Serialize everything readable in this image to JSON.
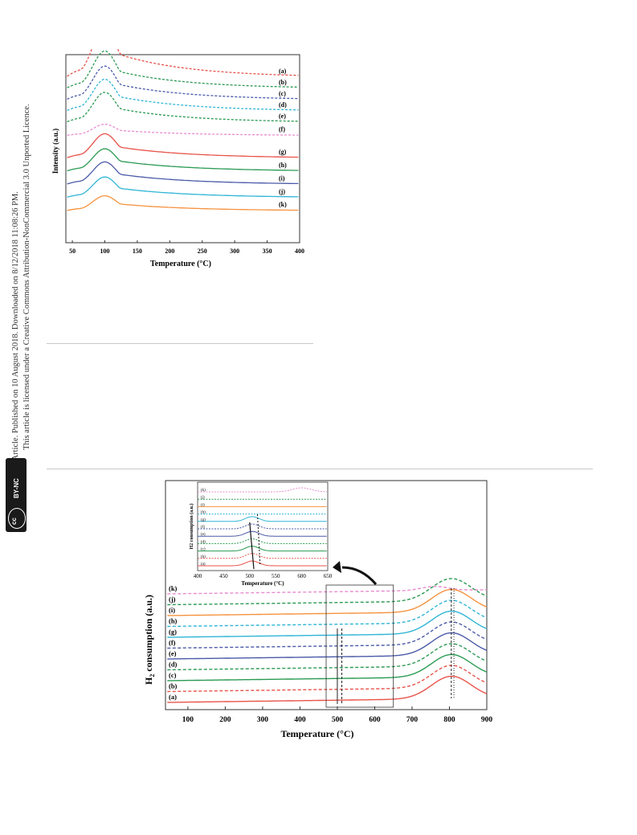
{
  "sidebar": {
    "line1": "Open Access Article. Published on 10 August 2018. Downloaded on 8/12/2018 11:08:26 PM.",
    "line2": "This article is licensed under a Creative Commons Attribution-NonCommercial 3.0 Unported Licence.",
    "badge_cc": "cc",
    "badge_by": "BY-NC"
  },
  "chart_data": [
    {
      "type": "line",
      "title": "",
      "xlabel": "Temperature (°C)",
      "ylabel": "Intensity (a.u.)",
      "xlim": [
        40,
        400
      ],
      "xticks": [
        50,
        100,
        150,
        200,
        250,
        300,
        350,
        400
      ],
      "peak_x": 100,
      "series": [
        {
          "name": "(a)",
          "style": "dashed",
          "color": "#e8534a",
          "baseline": 0.88,
          "peak": 0.27
        },
        {
          "name": "(b)",
          "style": "dashed",
          "color": "#2a9a52",
          "baseline": 0.82,
          "peak": 0.2
        },
        {
          "name": "(c)",
          "style": "dashed",
          "color": "#4a5aa8",
          "baseline": 0.76,
          "peak": 0.18
        },
        {
          "name": "(d)",
          "style": "dashed",
          "color": "#2fb5d6",
          "baseline": 0.7,
          "peak": 0.17
        },
        {
          "name": "(e)",
          "style": "dashed",
          "color": "#2a9a52",
          "baseline": 0.64,
          "peak": 0.16
        },
        {
          "name": "(f)",
          "style": "dashed",
          "color": "#e88ccf",
          "baseline": 0.57,
          "peak": 0.06
        },
        {
          "name": "(g)",
          "style": "solid",
          "color": "#e8534a",
          "baseline": 0.45,
          "peak": 0.13
        },
        {
          "name": "(h)",
          "style": "solid",
          "color": "#2a9a52",
          "baseline": 0.38,
          "peak": 0.12
        },
        {
          "name": "(i)",
          "style": "solid",
          "color": "#4a5aa8",
          "baseline": 0.31,
          "peak": 0.12
        },
        {
          "name": "(j)",
          "style": "solid",
          "color": "#2fb5d6",
          "baseline": 0.24,
          "peak": 0.11
        },
        {
          "name": "(k)",
          "style": "solid",
          "color": "#f5923e",
          "baseline": 0.17,
          "peak": 0.08
        }
      ]
    },
    {
      "type": "line",
      "title": "",
      "xlabel": "Temperature (°C)",
      "ylabel": "H2 consumption (a.u.)",
      "xlim": [
        40,
        900
      ],
      "xticks": [
        100,
        200,
        300,
        400,
        500,
        600,
        700,
        800,
        900
      ],
      "main_peak_x": 805,
      "series": [
        {
          "name": "(k)",
          "style": "dashed",
          "color": "#e88ccf",
          "shoulder_x": 760
        },
        {
          "name": "(j)",
          "style": "dashed",
          "color": "#2a9a52"
        },
        {
          "name": "(i)",
          "style": "solid",
          "color": "#f5923e"
        },
        {
          "name": "(h)",
          "style": "dashed",
          "color": "#2fb5d6"
        },
        {
          "name": "(g)",
          "style": "solid",
          "color": "#2fb5d6"
        },
        {
          "name": "(f)",
          "style": "dashed",
          "color": "#4a5aa8"
        },
        {
          "name": "(e)",
          "style": "solid",
          "color": "#4a5aa8"
        },
        {
          "name": "(d)",
          "style": "dashed",
          "color": "#2a9a52"
        },
        {
          "name": "(c)",
          "style": "solid",
          "color": "#2a9a52"
        },
        {
          "name": "(b)",
          "style": "dashed",
          "color": "#e8534a"
        },
        {
          "name": "(a)",
          "style": "solid",
          "color": "#e8534a"
        }
      ],
      "inset": {
        "xlabel": "Temperature (°C)",
        "ylabel": "H2 consumption (a.u.)",
        "xlim": [
          400,
          650
        ],
        "xticks": [
          400,
          450,
          500,
          550,
          600,
          650
        ],
        "zoom_range": [
          470,
          650
        ],
        "labels": [
          "(k)",
          "(j)",
          "(i)",
          "(h)",
          "(g)",
          "(f)",
          "(e)",
          "(d)",
          "(c)",
          "(b)",
          "(a)"
        ]
      }
    }
  ]
}
